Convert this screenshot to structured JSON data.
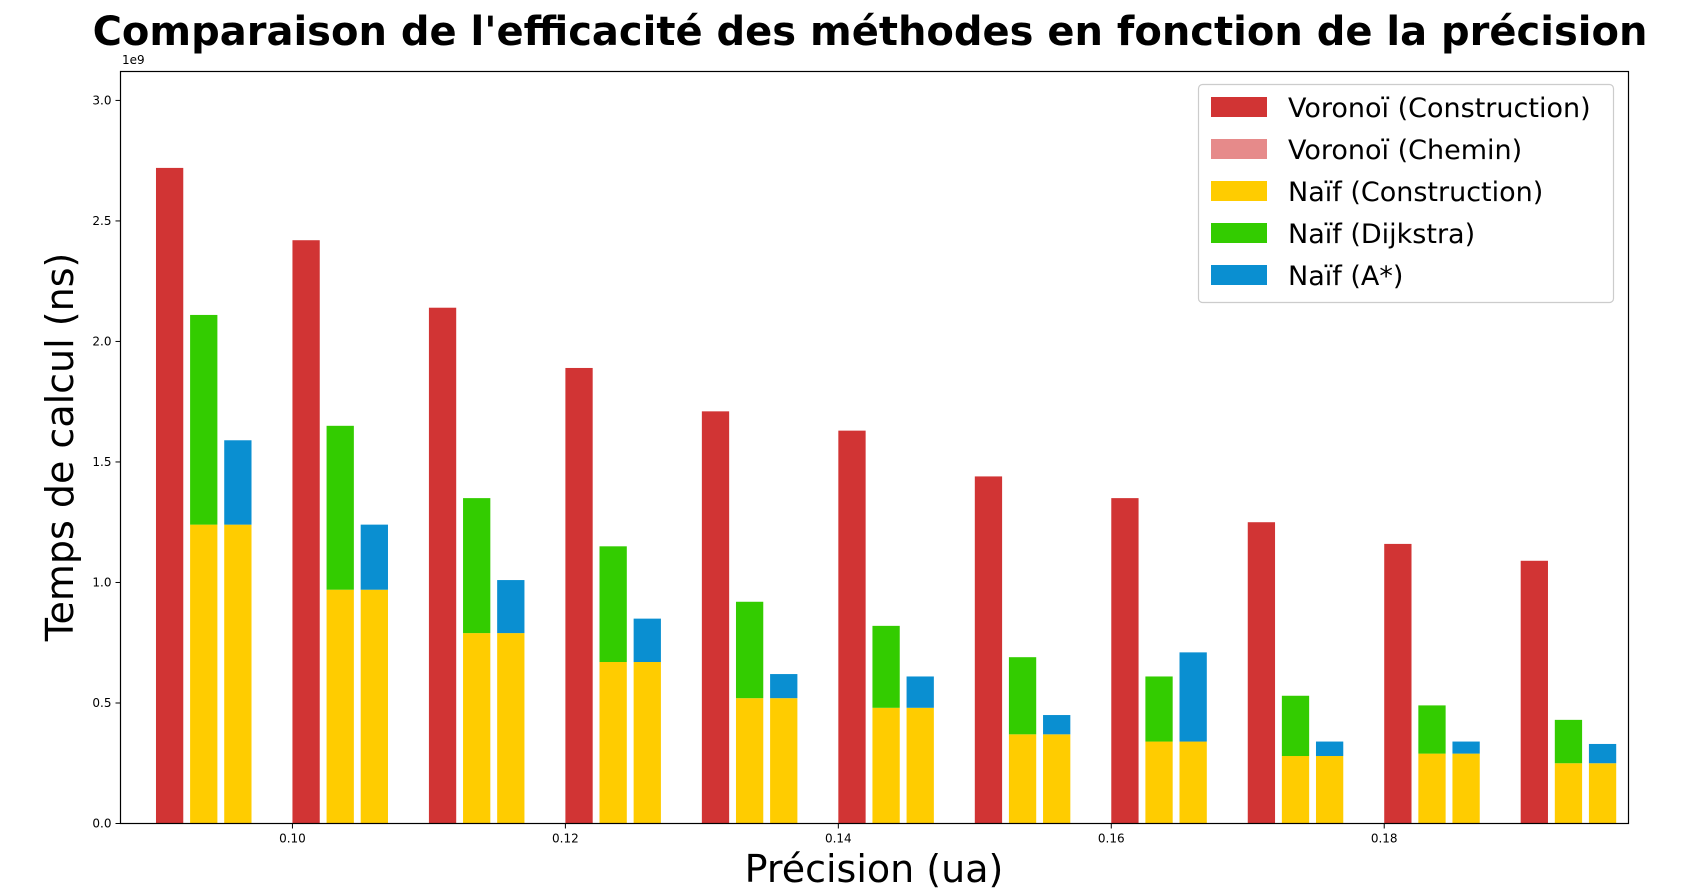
{
  "chart_data": {
    "type": "bar",
    "title": "Comparaison de l'efficacité des méthodes en fonction de la précision",
    "xlabel": "Précision (ua)",
    "ylabel": "Temps de calcul (ns)",
    "y_offset_label": "1e9",
    "ylim": [
      0,
      3.12
    ],
    "y_unit_scale": 1000000000.0,
    "xlim": [
      0.0874,
      0.1979
    ],
    "x_ticks": [
      0.1,
      0.12,
      0.14,
      0.16,
      0.18
    ],
    "x_tick_labels": [
      "0.10",
      "0.12",
      "0.14",
      "0.16",
      "0.18"
    ],
    "y_ticks": [
      0.0,
      0.5,
      1.0,
      1.5,
      2.0,
      2.5,
      3.0
    ],
    "y_tick_labels": [
      "0.0",
      "0.5",
      "1.0",
      "1.5",
      "2.0",
      "2.5",
      "3.0"
    ],
    "x": [
      0.09,
      0.1,
      0.11,
      0.12,
      0.13,
      0.14,
      0.15,
      0.16,
      0.17,
      0.18,
      0.19
    ],
    "bar_width": 0.002,
    "group_offsets": [
      0.0,
      0.0025,
      0.005
    ],
    "series": [
      {
        "name": "Voronoï (Construction)",
        "color": "#d13434",
        "group": 0,
        "base": null,
        "values": [
          2.72,
          2.42,
          2.14,
          1.89,
          1.71,
          1.63,
          1.44,
          1.35,
          1.25,
          1.16,
          1.09
        ]
      },
      {
        "name": "Voronoï (Chemin)",
        "color": "#e68a8a",
        "group": 0,
        "base": 0,
        "values": [
          0,
          0,
          0,
          0,
          0,
          0,
          0,
          0,
          0,
          0,
          0
        ]
      },
      {
        "name": "Naïf (Construction)",
        "color": "#ffcc00",
        "group": [
          1,
          2
        ],
        "base": null,
        "values": [
          1.24,
          0.97,
          0.79,
          0.67,
          0.52,
          0.48,
          0.37,
          0.34,
          0.28,
          0.29,
          0.25
        ]
      },
      {
        "name": "Naïf (Dijkstra)",
        "color": "#33cc00",
        "group": 1,
        "base": "Naïf (Construction)",
        "values": [
          0.87,
          0.68,
          0.56,
          0.48,
          0.4,
          0.34,
          0.32,
          0.27,
          0.25,
          0.2,
          0.18
        ]
      },
      {
        "name": "Naïf (A*)",
        "color": "#0a8fd1",
        "group": 2,
        "base": "Naïf (Construction)",
        "values": [
          0.35,
          0.27,
          0.22,
          0.18,
          0.1,
          0.13,
          0.08,
          0.37,
          0.06,
          0.05,
          0.08
        ]
      }
    ],
    "legend": {
      "placement": "top-right",
      "entries": [
        {
          "label": "Voronoï (Construction)",
          "color": "#d13434"
        },
        {
          "label": "Voronoï (Chemin)",
          "color": "#e68a8a"
        },
        {
          "label": "Naïf (Construction)",
          "color": "#ffcc00"
        },
        {
          "label": "Naïf (Dijkstra)",
          "color": "#33cc00"
        },
        {
          "label": "Naïf (A*)",
          "color": "#0a8fd1"
        }
      ]
    },
    "grid": false
  }
}
